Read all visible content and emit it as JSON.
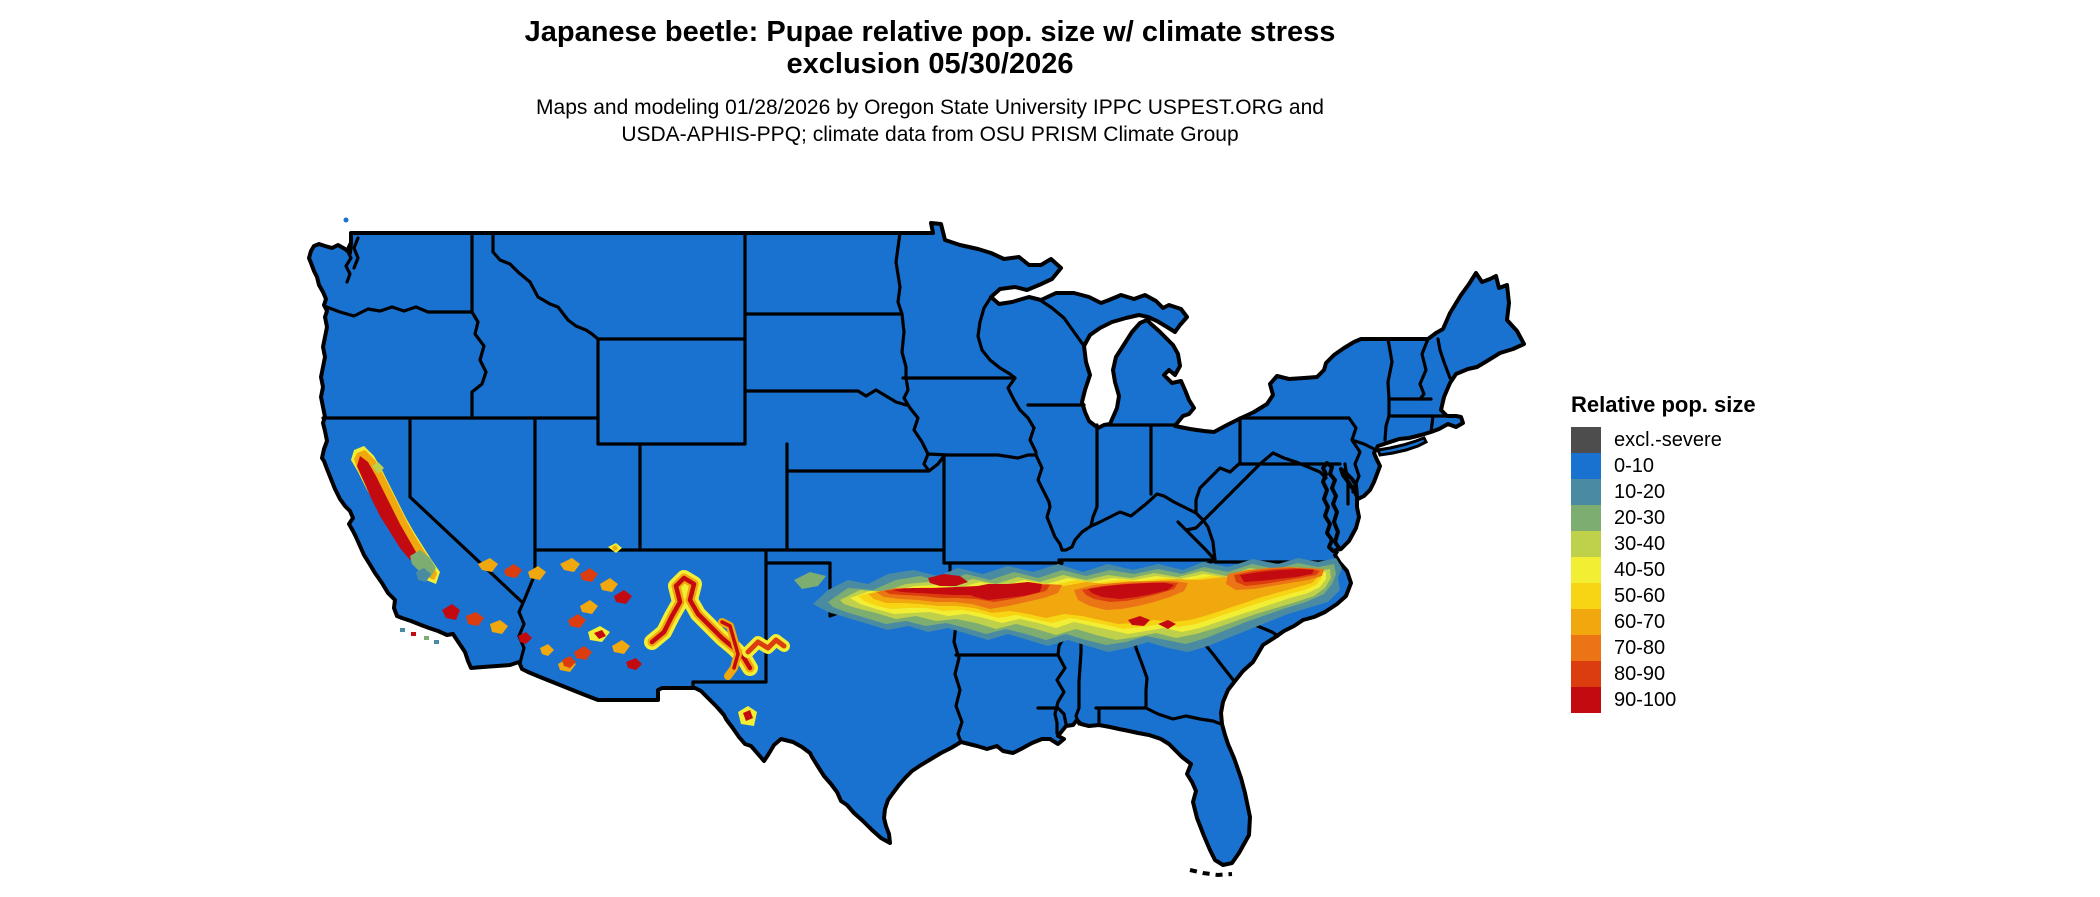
{
  "title": {
    "line1": "Japanese beetle: Pupae relative pop. size w/ climate stress",
    "line2": "exclusion 05/30/2026"
  },
  "subtitle": {
    "line1": "Maps and modeling 01/28/2026 by Oregon State University IPPC USPEST.ORG and",
    "line2": "USDA-APHIS-PPQ; climate data from OSU PRISM Climate Group"
  },
  "legend": {
    "title": "Relative pop. size",
    "entries": [
      {
        "label": "excl.-severe",
        "color": "#4d4d4d"
      },
      {
        "label": "0-10",
        "color": "#1a72d0"
      },
      {
        "label": "10-20",
        "color": "#4a8ba1"
      },
      {
        "label": "20-30",
        "color": "#7ead72"
      },
      {
        "label": "30-40",
        "color": "#bfd04a"
      },
      {
        "label": "40-50",
        "color": "#f1ee33"
      },
      {
        "label": "50-60",
        "color": "#f7d514"
      },
      {
        "label": "60-70",
        "color": "#f1a70e"
      },
      {
        "label": "70-80",
        "color": "#eb7514"
      },
      {
        "label": "80-90",
        "color": "#dc3d0f"
      },
      {
        "label": "90-100",
        "color": "#c40a11"
      }
    ]
  },
  "map": {
    "land_fill": "#1a72d0",
    "border_color": "#000000",
    "water_background": "#ffffff",
    "region": "Conterminous United States with state boundaries"
  }
}
